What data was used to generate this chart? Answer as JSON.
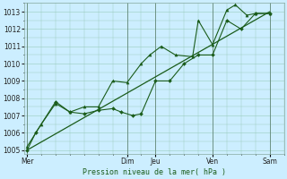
{
  "xlabel": "Pression niveau de la mer( hPa )",
  "bg_color": "#cceeff",
  "grid_color": "#99ccbb",
  "line_color": "#1a5c1a",
  "ylim": [
    1004.8,
    1013.5
  ],
  "yticks": [
    1005,
    1006,
    1007,
    1008,
    1009,
    1010,
    1011,
    1012,
    1013
  ],
  "day_labels": [
    "Mer",
    "Dim",
    "Jeu",
    "Ven",
    "Sam"
  ],
  "day_x": [
    0,
    3.5,
    4.5,
    6.5,
    8.5
  ],
  "xmin": -0.1,
  "xmax": 9.0,
  "line1_x": [
    0,
    0.3,
    1.0,
    1.5,
    2.0,
    2.5,
    3.0,
    3.3,
    3.7,
    4.0,
    4.5,
    5.0,
    5.5,
    6.0,
    6.5,
    7.0,
    7.5,
    8.0,
    8.5
  ],
  "line1_y": [
    1005.0,
    1006.0,
    1007.8,
    1007.2,
    1007.1,
    1007.3,
    1007.4,
    1007.2,
    1007.0,
    1007.1,
    1009.0,
    1009.0,
    1010.0,
    1010.5,
    1010.5,
    1012.5,
    1012.0,
    1012.9,
    1012.9
  ],
  "line2_x": [
    0,
    0.5,
    1.0,
    1.5,
    2.0,
    2.5,
    3.0,
    3.5,
    4.0,
    4.3,
    4.7,
    5.2,
    5.8,
    6.0,
    6.5,
    7.0,
    7.3,
    7.7,
    8.0,
    8.5
  ],
  "line2_y": [
    1005.2,
    1006.5,
    1007.7,
    1007.2,
    1007.5,
    1007.5,
    1009.0,
    1008.9,
    1010.0,
    1010.5,
    1011.0,
    1010.5,
    1010.4,
    1012.5,
    1011.1,
    1013.1,
    1013.4,
    1012.8,
    1012.9,
    1012.9
  ],
  "line3_x": [
    0,
    8.5
  ],
  "line3_y": [
    1005.0,
    1013.0
  ]
}
